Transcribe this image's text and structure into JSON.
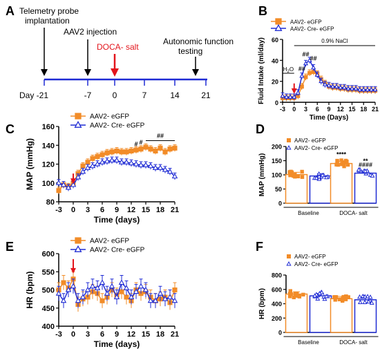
{
  "colors": {
    "orange": "#F28C28",
    "blue": "#1F2BD4",
    "red": "#E3141B",
    "black": "#000000"
  },
  "timeline": {
    "panel_label": "A",
    "days": [
      "Day -21",
      "-7",
      "0",
      "7",
      "14",
      "21"
    ],
    "events": {
      "telemetry": "Telemetry probe implantation",
      "aav2": "AAV2 injection",
      "doca": "DOCA- salt",
      "autonomic": "Autonomic function testing"
    }
  },
  "legend": {
    "aav_egfp": "AAV2- eGFP",
    "aav_cre": "AAV2- Cre- eGFP"
  },
  "chart_data": [
    {
      "panel": "B",
      "type": "line",
      "xlabel": "Time (Days)",
      "ylabel": "Fluid Intake (ml/day)",
      "xlim": [
        -3,
        21
      ],
      "ylim": [
        0,
        60
      ],
      "xticks": [
        "-3",
        "0",
        "3",
        "6",
        "9",
        "12",
        "15",
        "18",
        "21"
      ],
      "yticks": [
        "0",
        "20",
        "40",
        "60"
      ],
      "annotations": {
        "nacl": "0.9% NaCl",
        "h2o": "H2O",
        "h2o_base": "H",
        "h2o_sub": "2",
        "h2o_o": "O",
        "sig1": "##",
        "sig2": "##",
        "sig3": "##"
      },
      "x": [
        -3,
        -2,
        -1,
        0,
        1,
        2,
        3,
        4,
        5,
        6,
        7,
        8,
        9,
        10,
        11,
        12,
        13,
        14,
        15,
        16,
        17,
        18,
        19,
        20,
        21
      ],
      "series": [
        {
          "name": "AAV2- eGFP",
          "color": "orange",
          "marker": "square",
          "values": [
            4,
            4,
            4,
            4,
            6,
            15,
            24,
            28,
            29,
            27,
            22,
            18,
            15,
            14,
            14,
            13,
            13,
            12,
            12,
            12,
            11,
            11,
            11,
            11,
            11
          ]
        },
        {
          "name": "AAV2- Cre- eGFP",
          "color": "blue",
          "marker": "triangle",
          "values": [
            6,
            5,
            5,
            5,
            9,
            25,
            37,
            40,
            33,
            26,
            20,
            17,
            16,
            15,
            15,
            14,
            14,
            13,
            13,
            13,
            12,
            12,
            12,
            12,
            12
          ]
        }
      ]
    },
    {
      "panel": "C",
      "type": "line",
      "xlabel": "Time (days)",
      "ylabel": "MAP (mmHg)",
      "xlim": [
        -3,
        21
      ],
      "ylim": [
        80,
        160
      ],
      "xticks": [
        "-3",
        "0",
        "3",
        "6",
        "9",
        "12",
        "15",
        "18",
        "21"
      ],
      "yticks": [
        "80",
        "100",
        "120",
        "140",
        "160"
      ],
      "annotations": {
        "sig": "##",
        "hash": "#"
      },
      "x": [
        -3,
        -2,
        -1,
        0,
        1,
        2,
        3,
        4,
        5,
        6,
        7,
        8,
        9,
        10,
        11,
        12,
        13,
        14,
        15,
        16,
        17,
        18,
        19,
        20,
        21
      ],
      "series": [
        {
          "name": "AAV2- eGFP",
          "color": "orange",
          "marker": "square",
          "values": [
            92,
            98,
            96,
            100,
            110,
            118,
            122,
            126,
            128,
            130,
            132,
            133,
            134,
            133,
            133,
            134,
            135,
            136,
            138,
            136,
            134,
            137,
            133,
            136,
            137
          ]
        },
        {
          "name": "AAV2- Cre- eGFP",
          "color": "blue",
          "marker": "triangle",
          "values": [
            100,
            98,
            95,
            98,
            106,
            112,
            116,
            118,
            120,
            122,
            123,
            124,
            124,
            122,
            122,
            121,
            120,
            119,
            119,
            118,
            116,
            116,
            114,
            112,
            107
          ]
        }
      ]
    },
    {
      "panel": "D",
      "type": "bar",
      "ylabel": "MAP (mmHg)",
      "ylim": [
        0,
        200
      ],
      "yticks": [
        "0",
        "50",
        "100",
        "150",
        "200"
      ],
      "categories": [
        "Baseline",
        "DOCA- salt"
      ],
      "annotations": {
        "stars4": "****",
        "stars2": "**",
        "hash4": "####"
      },
      "series": [
        {
          "name": "AAV2- eGFP",
          "color": "orange",
          "values": [
            101,
            140
          ]
        },
        {
          "name": "AAV2- Cre- eGFP",
          "color": "blue",
          "values": [
            96,
            106
          ]
        }
      ]
    },
    {
      "panel": "E",
      "type": "line",
      "xlabel": "Time (days)",
      "ylabel": "HR (bpm)",
      "xlim": [
        -3,
        21
      ],
      "ylim": [
        400,
        600
      ],
      "xticks": [
        "-3",
        "0",
        "3",
        "6",
        "9",
        "12",
        "15",
        "18",
        "21"
      ],
      "yticks": [
        "400",
        "450",
        "500",
        "550",
        "600"
      ],
      "x": [
        -3,
        -2,
        -1,
        0,
        1,
        2,
        3,
        4,
        5,
        6,
        7,
        8,
        9,
        10,
        11,
        12,
        13,
        14,
        15,
        16,
        17,
        18,
        19,
        20,
        21
      ],
      "series": [
        {
          "name": "AAV2- eGFP",
          "color": "orange",
          "marker": "square",
          "values": [
            500,
            520,
            505,
            530,
            460,
            475,
            480,
            495,
            490,
            470,
            480,
            500,
            485,
            495,
            480,
            470,
            500,
            490,
            495,
            480,
            470,
            475,
            480,
            465,
            500
          ]
        },
        {
          "name": "AAV2- Cre- eGFP",
          "color": "blue",
          "marker": "triangle",
          "values": [
            490,
            470,
            500,
            510,
            470,
            480,
            500,
            510,
            505,
            520,
            490,
            510,
            480,
            520,
            505,
            480,
            495,
            510,
            500,
            470,
            470,
            490,
            475,
            480,
            470
          ]
        }
      ]
    },
    {
      "panel": "F",
      "type": "bar",
      "ylabel": "HR (bpm)",
      "ylim": [
        0,
        800
      ],
      "yticks": [
        "0",
        "200",
        "400",
        "600",
        "800"
      ],
      "categories": [
        "Baseline",
        "DOCA- salt"
      ],
      "series": [
        {
          "name": "AAV2- eGFP",
          "color": "orange",
          "values": [
            535,
            470
          ]
        },
        {
          "name": "AAV2- Cre- eGFP",
          "color": "blue",
          "values": [
            510,
            455
          ]
        }
      ]
    }
  ]
}
